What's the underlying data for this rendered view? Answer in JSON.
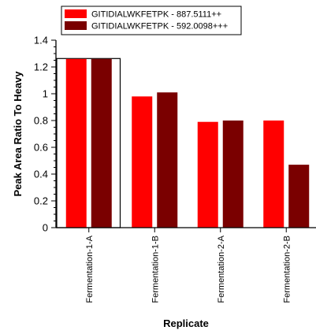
{
  "chart_data": {
    "type": "bar",
    "xlabel": "Replicate",
    "ylabel": "Peak Area Ratio To Heavy",
    "ylim": [
      0,
      1.4
    ],
    "yticks": [
      0,
      0.2,
      0.4,
      0.6,
      0.8,
      1,
      1.2,
      1.4
    ],
    "grid": false,
    "legend_position": "top",
    "categories": [
      "Fermentation-1-A",
      "Fermentation-1-B",
      "Fermentation-2-A",
      "Fermentation-2-B"
    ],
    "selected_category": "Fermentation-1-A",
    "series": [
      {
        "name": "GITIDIALWKFETPK - 887.5111++",
        "color": "#ff0000",
        "values": [
          1.26,
          0.98,
          0.79,
          0.8
        ]
      },
      {
        "name": "GITIDIALWKFETPK - 592.0098+++",
        "color": "#7a0000",
        "values": [
          1.26,
          1.01,
          0.8,
          0.47
        ]
      }
    ]
  }
}
